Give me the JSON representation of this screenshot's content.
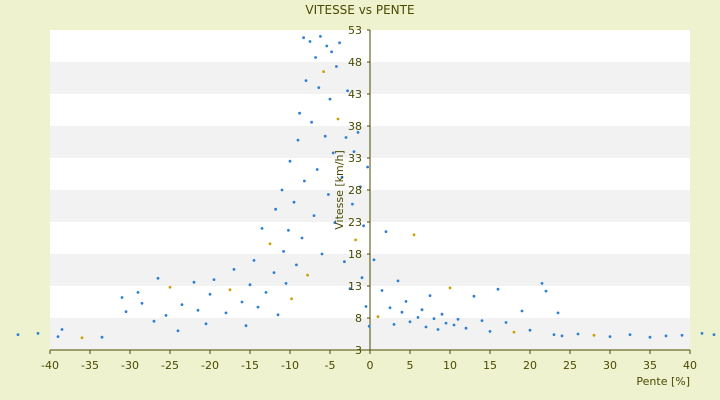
{
  "chart_data": {
    "type": "scatter",
    "title": "VITESSE vs PENTE",
    "xlabel": "Pente [%]",
    "ylabel": "Vitesse [km/h]",
    "xlim": [
      -40,
      40
    ],
    "ylim": [
      3,
      53
    ],
    "xticks": [
      -40,
      -35,
      -30,
      -25,
      -20,
      -15,
      -10,
      -5,
      0,
      5,
      10,
      15,
      20,
      25,
      30,
      35,
      40
    ],
    "yticks": [
      3,
      8,
      13,
      18,
      23,
      28,
      33,
      38,
      43,
      48,
      53
    ],
    "grid": "horizontal alternating bands",
    "colors": {
      "page_bg": "#eef2cf",
      "band_light": "#ffffff",
      "band_dark": "#f2f2f2",
      "point": "#2e7fd3",
      "point_highlight": "#c9a200",
      "axis": "#4a4a00"
    },
    "series": [
      {
        "points": [
          [
            -44.0,
            5.4
          ],
          [
            -41.5,
            5.6
          ],
          [
            -39.0,
            5.1
          ],
          [
            -38.5,
            6.2
          ],
          [
            -36.0,
            4.9
          ],
          [
            -33.5,
            5.0
          ],
          [
            -31.0,
            11.2
          ],
          [
            -30.5,
            9.0
          ],
          [
            -29.0,
            12.0
          ],
          [
            -28.5,
            10.3
          ],
          [
            -27.0,
            7.5
          ],
          [
            -26.5,
            14.2
          ],
          [
            -25.5,
            8.4
          ],
          [
            -25.0,
            12.8
          ],
          [
            -24.0,
            6.0
          ],
          [
            -23.5,
            10.1
          ],
          [
            -22.0,
            13.6
          ],
          [
            -21.5,
            9.2
          ],
          [
            -20.5,
            7.1
          ],
          [
            -20.0,
            11.7
          ],
          [
            -19.5,
            14.0
          ],
          [
            -18.0,
            8.8
          ],
          [
            -17.5,
            12.4
          ],
          [
            -17.0,
            15.6
          ],
          [
            -16.0,
            10.5
          ],
          [
            -15.5,
            6.8
          ],
          [
            -15.0,
            13.2
          ],
          [
            -14.5,
            17.0
          ],
          [
            -14.0,
            9.7
          ],
          [
            -13.5,
            22.0
          ],
          [
            -13.0,
            12.0
          ],
          [
            -12.5,
            19.6
          ],
          [
            -12.0,
            15.1
          ],
          [
            -11.8,
            25.0
          ],
          [
            -11.5,
            8.5
          ],
          [
            -11.0,
            28.0
          ],
          [
            -10.8,
            18.4
          ],
          [
            -10.5,
            13.4
          ],
          [
            -10.2,
            21.7
          ],
          [
            -10.0,
            32.5
          ],
          [
            -9.8,
            11.0
          ],
          [
            -9.5,
            26.1
          ],
          [
            -9.2,
            16.3
          ],
          [
            -9.0,
            35.8
          ],
          [
            -8.8,
            40.0
          ],
          [
            -8.5,
            20.5
          ],
          [
            -8.3,
            51.8
          ],
          [
            -8.2,
            29.4
          ],
          [
            -8.0,
            45.1
          ],
          [
            -7.8,
            14.7
          ],
          [
            -7.5,
            51.2
          ],
          [
            -7.3,
            38.6
          ],
          [
            -7.0,
            24.0
          ],
          [
            -6.8,
            48.7
          ],
          [
            -6.6,
            31.2
          ],
          [
            -6.4,
            44.0
          ],
          [
            -6.2,
            52.0
          ],
          [
            -6.0,
            18.0
          ],
          [
            -5.8,
            46.5
          ],
          [
            -5.6,
            36.4
          ],
          [
            -5.4,
            50.5
          ],
          [
            -5.2,
            27.3
          ],
          [
            -5.0,
            42.2
          ],
          [
            -4.8,
            49.6
          ],
          [
            -4.6,
            33.8
          ],
          [
            -4.4,
            22.9
          ],
          [
            -4.2,
            47.3
          ],
          [
            -4.0,
            39.1
          ],
          [
            -3.8,
            51.0
          ],
          [
            -3.5,
            30.0
          ],
          [
            -3.2,
            16.8
          ],
          [
            -3.0,
            36.2
          ],
          [
            -2.8,
            43.5
          ],
          [
            -2.5,
            12.6
          ],
          [
            -2.2,
            25.8
          ],
          [
            -2.0,
            34.0
          ],
          [
            -1.8,
            20.2
          ],
          [
            -1.5,
            37.0
          ],
          [
            -1.2,
            28.5
          ],
          [
            -1.0,
            14.3
          ],
          [
            -0.8,
            22.4
          ],
          [
            -0.5,
            9.8
          ],
          [
            -0.3,
            31.6
          ],
          [
            -0.1,
            6.7
          ],
          [
            0.5,
            17.1
          ],
          [
            1.0,
            8.2
          ],
          [
            1.5,
            12.3
          ],
          [
            2.0,
            21.5
          ],
          [
            2.5,
            9.6
          ],
          [
            3.0,
            7.0
          ],
          [
            3.5,
            13.8
          ],
          [
            4.0,
            8.9
          ],
          [
            4.5,
            10.6
          ],
          [
            5.0,
            7.4
          ],
          [
            5.5,
            21.0
          ],
          [
            6.0,
            8.1
          ],
          [
            6.5,
            9.3
          ],
          [
            7.0,
            6.6
          ],
          [
            7.5,
            11.5
          ],
          [
            8.0,
            7.9
          ],
          [
            8.5,
            6.2
          ],
          [
            9.0,
            8.6
          ],
          [
            9.5,
            7.2
          ],
          [
            10.0,
            12.7
          ],
          [
            10.5,
            6.9
          ],
          [
            11.0,
            7.8
          ],
          [
            12.0,
            6.4
          ],
          [
            13.0,
            11.4
          ],
          [
            14.0,
            7.6
          ],
          [
            15.0,
            5.9
          ],
          [
            16.0,
            12.5
          ],
          [
            17.0,
            7.3
          ],
          [
            18.0,
            5.8
          ],
          [
            19.0,
            9.1
          ],
          [
            20.0,
            6.1
          ],
          [
            21.5,
            13.4
          ],
          [
            22.0,
            12.2
          ],
          [
            23.0,
            5.4
          ],
          [
            23.5,
            8.8
          ],
          [
            24.0,
            5.2
          ],
          [
            26.0,
            5.5
          ],
          [
            28.0,
            5.3
          ],
          [
            30.0,
            5.1
          ],
          [
            32.5,
            5.4
          ],
          [
            35.0,
            5.0
          ],
          [
            37.0,
            5.2
          ],
          [
            39.0,
            5.3
          ],
          [
            41.5,
            5.6
          ],
          [
            43.0,
            5.4
          ]
        ]
      }
    ]
  }
}
